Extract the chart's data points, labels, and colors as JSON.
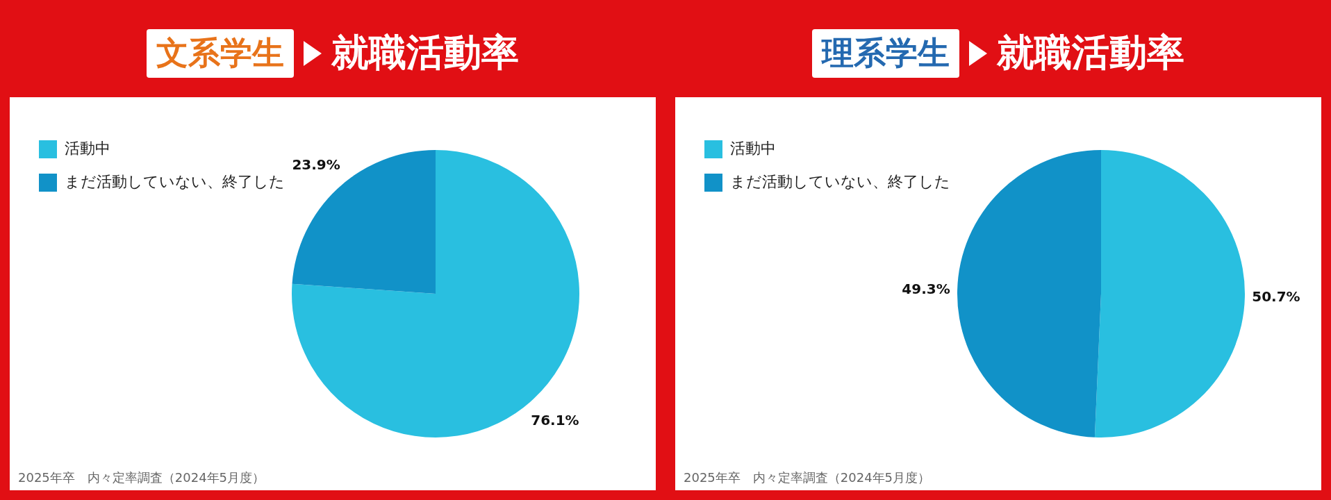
{
  "chart_data": [
    {
      "type": "pie",
      "subtitle": "文系学生",
      "title": "就職活動率",
      "categories": [
        "活動中",
        "まだ活動していない、終了した"
      ],
      "values": [
        76.1,
        23.9
      ],
      "colors": [
        "#29bfe0",
        "#1192c8"
      ],
      "legend": "top left",
      "value_labels": [
        "76.1%",
        "23.9%"
      ],
      "annotations": [
        "2025年卒　内々定率調査（2024年5月度）"
      ]
    },
    {
      "type": "pie",
      "subtitle": "理系学生",
      "title": "就職活動率",
      "categories": [
        "活動中",
        "まだ活動していない、終了した"
      ],
      "values": [
        50.7,
        49.3
      ],
      "colors": [
        "#29bfe0",
        "#1192c8"
      ],
      "legend": "top left",
      "value_labels": [
        "50.7%",
        "49.3%"
      ],
      "annotations": [
        "2025年卒　内々定率調査（2024年5月度）"
      ]
    }
  ]
}
